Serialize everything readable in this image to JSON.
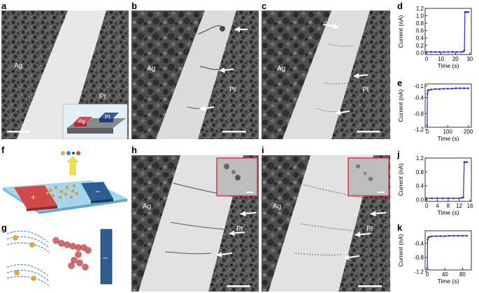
{
  "panels": {
    "a": {
      "label": "a",
      "left": "Ag",
      "right": "Pt",
      "inset_left": "Ag",
      "inset_right": "Pt"
    },
    "b": {
      "label": "b",
      "left": "Ag",
      "right": "Pt"
    },
    "c": {
      "label": "c",
      "left": "Ag",
      "right": "Pt"
    },
    "f": {
      "label": "f",
      "plus": "+",
      "minus": "−"
    },
    "g": {
      "label": "g",
      "minus": "−"
    },
    "h": {
      "label": "h",
      "left": "Ag",
      "right": "Pt"
    },
    "i": {
      "label": "i",
      "left": "Ag",
      "right": "Pt"
    }
  },
  "chart_data": [
    {
      "id": "d",
      "label": "d",
      "type": "line",
      "xlabel": "Time (s)",
      "ylabel": "Current (nA)",
      "xlim": [
        -1,
        31
      ],
      "ylim": [
        -0.05,
        1.2
      ],
      "xticks": [
        0,
        10,
        20,
        30
      ],
      "xtick_labels": [
        "0",
        "10",
        "20",
        "30"
      ],
      "yticks": [
        0.0,
        0.2,
        0.4,
        0.6,
        0.8,
        1.0,
        1.2
      ],
      "ytick_labels": [
        "0.0",
        "0.2",
        "0.4",
        "0.6",
        "0.8",
        "1.0",
        "1.2"
      ],
      "x": [
        0,
        3,
        6,
        9,
        12,
        15,
        18,
        21,
        24,
        25.5,
        26.2,
        26.6,
        27.0,
        28,
        29
      ],
      "y": [
        0.02,
        0.02,
        0.02,
        0.02,
        0.02,
        0.02,
        0.02,
        0.02,
        0.02,
        0.03,
        0.06,
        1.1,
        1.1,
        1.1,
        1.1
      ]
    },
    {
      "id": "e",
      "label": "e",
      "type": "line",
      "xlabel": "Time (s)",
      "ylabel": "Current (nA)",
      "xlim": [
        -10,
        215
      ],
      "ylim": [
        -1.15,
        -0.05
      ],
      "xticks": [
        0,
        100,
        200
      ],
      "xtick_labels": [
        "0",
        "100",
        "200"
      ],
      "yticks": [
        -1.2,
        -0.8,
        -0.4,
        -0.1
      ],
      "ytick_labels": [
        "-1.2",
        "-0.8",
        "-0.4",
        "-0.1"
      ],
      "x": [
        0,
        1,
        3,
        8,
        20,
        40,
        60,
        80,
        100,
        120,
        140,
        160,
        180,
        200
      ],
      "y": [
        -1.1,
        -0.3,
        -0.22,
        -0.2,
        -0.19,
        -0.18,
        -0.18,
        -0.17,
        -0.17,
        -0.17,
        -0.16,
        -0.16,
        -0.16,
        -0.16
      ]
    },
    {
      "id": "j",
      "label": "j",
      "type": "line",
      "xlabel": "Time (s)",
      "ylabel": "Current (nA)",
      "xlim": [
        -0.5,
        16.5
      ],
      "ylim": [
        -0.05,
        1.2
      ],
      "xticks": [
        0,
        4,
        8,
        12,
        16
      ],
      "xtick_labels": [
        "0",
        "4",
        "8",
        "12",
        "16"
      ],
      "yticks": [
        0.0,
        0.4,
        0.8,
        1.2
      ],
      "ytick_labels": [
        "0.0",
        "0.4",
        "0.8",
        "1.2"
      ],
      "x": [
        0,
        2,
        4,
        6,
        8,
        10,
        12,
        13,
        13.6,
        13.9,
        14.2,
        15
      ],
      "y": [
        0.04,
        0.04,
        0.04,
        0.04,
        0.04,
        0.04,
        0.04,
        0.05,
        0.07,
        1.08,
        1.08,
        1.08
      ]
    },
    {
      "id": "k",
      "label": "k",
      "type": "line",
      "xlabel": "Time (s)",
      "ylabel": "Current (nA)",
      "xlim": [
        -5,
        100
      ],
      "ylim": [
        -1.15,
        -0.05
      ],
      "xticks": [
        0,
        40,
        80
      ],
      "xtick_labels": [
        "0",
        "40",
        "80"
      ],
      "yticks": [
        -1.2,
        -0.8,
        -0.4
      ],
      "ytick_labels": [
        "-1.2",
        "-0.8",
        "-0.4"
      ],
      "x": [
        0,
        0.5,
        2,
        5,
        10,
        20,
        30,
        40,
        50,
        60,
        70,
        80,
        90
      ],
      "y": [
        -1.1,
        -0.3,
        -0.24,
        -0.22,
        -0.21,
        -0.2,
        -0.2,
        -0.2,
        -0.19,
        -0.19,
        -0.19,
        -0.19,
        -0.19
      ]
    }
  ]
}
